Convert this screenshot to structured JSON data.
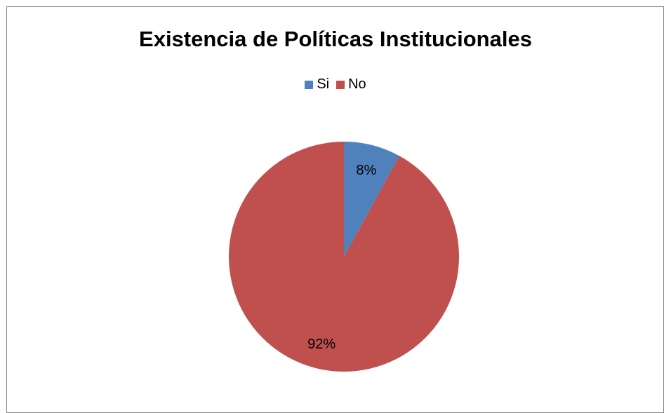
{
  "chart_data": {
    "type": "pie",
    "title": "Existencia de Políticas Institucionales",
    "categories": [
      "Si",
      "No"
    ],
    "values": [
      8,
      92
    ],
    "data_labels": [
      "8%",
      "92%"
    ],
    "colors": [
      "#4F81BD",
      "#C0504D"
    ],
    "legend_position": "top"
  }
}
